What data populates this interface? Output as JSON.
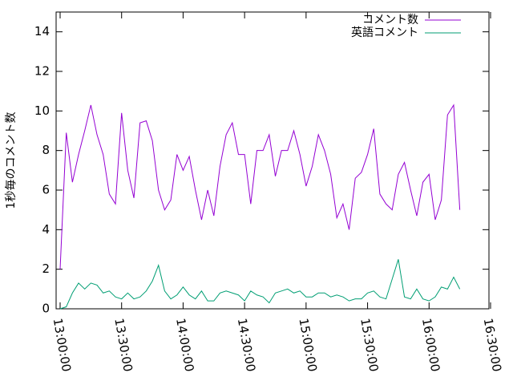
{
  "chart_data": {
    "type": "line",
    "y_label": "1秒毎のコメント数",
    "x": [
      "13:00:00",
      "13:03:00",
      "13:06:00",
      "13:09:00",
      "13:12:00",
      "13:15:00",
      "13:18:00",
      "13:21:00",
      "13:24:00",
      "13:27:00",
      "13:30:00",
      "13:33:00",
      "13:36:00",
      "13:39:00",
      "13:42:00",
      "13:45:00",
      "13:48:00",
      "13:51:00",
      "13:54:00",
      "13:57:00",
      "14:00:00",
      "14:03:00",
      "14:06:00",
      "14:09:00",
      "14:12:00",
      "14:15:00",
      "14:18:00",
      "14:21:00",
      "14:24:00",
      "14:27:00",
      "14:30:00",
      "14:33:00",
      "14:36:00",
      "14:39:00",
      "14:42:00",
      "14:45:00",
      "14:48:00",
      "14:51:00",
      "14:54:00",
      "14:57:00",
      "15:00:00",
      "15:03:00",
      "15:06:00",
      "15:09:00",
      "15:12:00",
      "15:15:00",
      "15:18:00",
      "15:21:00",
      "15:24:00",
      "15:27:00",
      "15:30:00",
      "15:33:00",
      "15:36:00",
      "15:39:00",
      "15:42:00",
      "15:45:00",
      "15:48:00",
      "15:51:00",
      "15:54:00",
      "15:57:00",
      "16:00:00",
      "16:03:00",
      "16:06:00",
      "16:09:00",
      "16:12:00",
      "16:15:00"
    ],
    "series": [
      {
        "name": "コメント数",
        "color": "#9400d3",
        "values": [
          2.0,
          8.9,
          6.4,
          7.8,
          9.0,
          10.3,
          8.8,
          7.8,
          5.8,
          5.3,
          9.9,
          7.0,
          5.6,
          9.4,
          9.5,
          8.5,
          6.0,
          5.0,
          5.5,
          7.8,
          7.0,
          7.7,
          6.0,
          4.5,
          6.0,
          4.7,
          7.2,
          8.8,
          9.4,
          7.8,
          7.8,
          5.3,
          8.0,
          8.0,
          8.8,
          6.7,
          8.0,
          8.0,
          9.0,
          7.8,
          6.2,
          7.2,
          8.8,
          8.0,
          6.8,
          4.6,
          5.3,
          4.0,
          6.6,
          6.9,
          7.8,
          9.1,
          5.8,
          5.3,
          5.0,
          6.8,
          7.4,
          6.0,
          4.7,
          6.4,
          6.8,
          4.5,
          5.5,
          9.8,
          10.3,
          5.0
        ]
      },
      {
        "name": "英語コメント",
        "color": "#009e73",
        "values": [
          0,
          0.1,
          0.8,
          1.3,
          1.0,
          1.3,
          1.2,
          0.8,
          0.9,
          0.6,
          0.5,
          0.8,
          0.5,
          0.6,
          0.9,
          1.4,
          2.2,
          0.9,
          0.5,
          0.7,
          1.1,
          0.7,
          0.5,
          0.9,
          0.4,
          0.4,
          0.8,
          0.9,
          0.8,
          0.7,
          0.4,
          0.9,
          0.7,
          0.6,
          0.3,
          0.8,
          0.9,
          1.0,
          0.8,
          0.9,
          0.6,
          0.6,
          0.8,
          0.8,
          0.6,
          0.7,
          0.6,
          0.4,
          0.5,
          0.5,
          0.8,
          0.9,
          0.6,
          0.5,
          1.5,
          2.5,
          0.6,
          0.5,
          1.0,
          0.5,
          0.4,
          0.6,
          1.1,
          1.0,
          1.6,
          1.0
        ]
      }
    ],
    "xlim": [
      "13:00:00",
      "16:30:00"
    ],
    "xticks": [
      "13:00:00",
      "13:30:00",
      "14:00:00",
      "14:30:00",
      "15:00:00",
      "15:30:00",
      "16:00:00",
      "16:30:00"
    ],
    "ylim": [
      0,
      15
    ],
    "yticks": [
      0,
      2,
      4,
      6,
      8,
      10,
      12,
      14
    ],
    "legend": "top-right"
  }
}
